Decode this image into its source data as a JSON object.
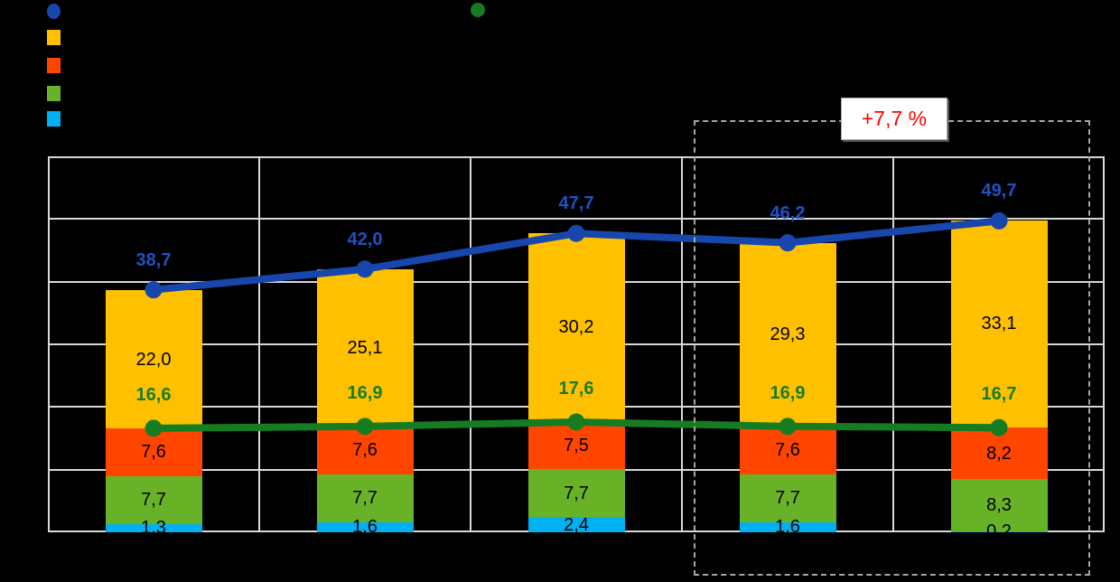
{
  "canvas": {
    "background": "#000000"
  },
  "legend": {
    "left_markers": [
      {
        "shape": "circle",
        "color": "#1747AD",
        "semantic": "total-line-marker"
      },
      {
        "shape": "square",
        "color": "#FFC000",
        "semantic": "amber-series-marker"
      },
      {
        "shape": "square",
        "color": "#FF4500",
        "semantic": "red-series-marker"
      },
      {
        "shape": "square",
        "color": "#68B228",
        "semantic": "green-series-marker"
      },
      {
        "shape": "square",
        "color": "#00B0F0",
        "semantic": "cyan-series-marker"
      }
    ],
    "right_marker": {
      "shape": "circle",
      "color": "#167C22",
      "semantic": "subtotal-line-marker"
    }
  },
  "annotation": {
    "label": "+7,7 %",
    "color": "#FF0000"
  },
  "chart_data": {
    "type": "bar",
    "subtype": "stacked-bars-with-line-overlays",
    "categories": [
      "",
      "",
      "",
      "",
      ""
    ],
    "stack_series": [
      {
        "name": "",
        "color": "#00B0F0",
        "label_color": "#000000",
        "values": [
          1.3,
          1.6,
          2.4,
          1.6,
          0.2
        ],
        "labels": [
          "1,3",
          "1,6",
          "2,4",
          "1,6",
          "0,2"
        ]
      },
      {
        "name": "",
        "color": "#68B228",
        "label_color": "#000000",
        "values": [
          7.7,
          7.7,
          7.7,
          7.7,
          8.3
        ],
        "labels": [
          "7,7",
          "7,7",
          "7,7",
          "7,7",
          "8,3"
        ]
      },
      {
        "name": "",
        "color": "#FF4500",
        "label_color": "#000000",
        "values": [
          7.6,
          7.6,
          7.5,
          7.6,
          8.2
        ],
        "labels": [
          "7,6",
          "7,6",
          "7,5",
          "7,6",
          "8,2"
        ]
      },
      {
        "name": "",
        "color": "#FFC000",
        "label_color": "#000000",
        "values": [
          22.0,
          25.1,
          30.2,
          29.3,
          33.1
        ],
        "labels": [
          "22,0",
          "25,1",
          "30,2",
          "29,3",
          "33,1"
        ]
      }
    ],
    "line_series": [
      {
        "name": "",
        "color": "#1747AD",
        "label_color": "#1E52C4",
        "values": [
          38.7,
          42.0,
          47.7,
          46.2,
          49.7
        ],
        "labels": [
          "38,7",
          "42,0",
          "47,7",
          "46,2",
          "49,7"
        ],
        "label_offset": -33
      },
      {
        "name": "",
        "color": "#167C22",
        "label_color": "#167C22",
        "values": [
          16.6,
          16.9,
          17.6,
          16.9,
          16.7
        ],
        "labels": [
          "16,6",
          "16,9",
          "17,6",
          "16,9",
          "16,7"
        ],
        "label_offset": -37
      }
    ],
    "ylim": [
      0,
      60
    ],
    "y_step": 10,
    "grid": true,
    "legend_position": "top-left",
    "highlight": {
      "label": "+7,7 %",
      "categories_covered": [
        3,
        4
      ]
    }
  }
}
